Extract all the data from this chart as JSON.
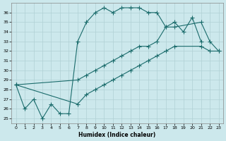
{
  "xlabel": "Humidex (Indice chaleur)",
  "bg_color": "#cce8ec",
  "line_color": "#1a6b6b",
  "grid_color": "#b0d0d4",
  "xlim": [
    -0.5,
    23.5
  ],
  "ylim": [
    24.5,
    37.0
  ],
  "xticks": [
    0,
    1,
    2,
    3,
    4,
    5,
    6,
    7,
    8,
    9,
    10,
    11,
    12,
    13,
    14,
    15,
    16,
    17,
    18,
    19,
    20,
    21,
    22,
    23
  ],
  "yticks": [
    25,
    26,
    27,
    28,
    29,
    30,
    31,
    32,
    33,
    34,
    35,
    36
  ],
  "line1_x": [
    0,
    1,
    2,
    3,
    4,
    5,
    6,
    7,
    8,
    9,
    10,
    11,
    12,
    13,
    14,
    15,
    16,
    17,
    18,
    19,
    20,
    21
  ],
  "line1_y": [
    28.5,
    26.0,
    27.0,
    25.0,
    26.5,
    25.5,
    25.5,
    33.0,
    35.0,
    36.0,
    36.5,
    36.0,
    36.5,
    36.5,
    36.5,
    36.0,
    36.0,
    34.5,
    35.0,
    34.0,
    35.5,
    33.0
  ],
  "line2_x": [
    0,
    7,
    8,
    9,
    10,
    11,
    12,
    13,
    14,
    15,
    16,
    17,
    18,
    21,
    22,
    23
  ],
  "line2_y": [
    28.5,
    29.0,
    29.5,
    30.0,
    30.5,
    31.0,
    31.5,
    32.0,
    32.5,
    32.5,
    33.0,
    34.5,
    34.5,
    35.0,
    33.0,
    32.0
  ],
  "line3_x": [
    0,
    7,
    8,
    9,
    10,
    11,
    12,
    13,
    14,
    15,
    16,
    17,
    18,
    21,
    22,
    23
  ],
  "line3_y": [
    28.5,
    26.5,
    27.5,
    28.0,
    28.5,
    29.0,
    29.5,
    30.0,
    30.5,
    31.0,
    31.5,
    32.0,
    32.5,
    32.5,
    32.0,
    32.0
  ]
}
